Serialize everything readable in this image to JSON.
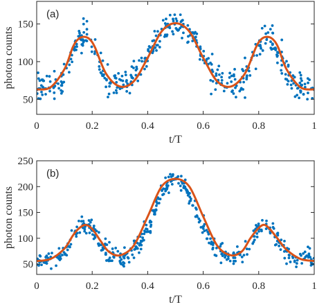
{
  "chart_data": [
    {
      "type": "scatter",
      "panel_label": "(a)",
      "xlabel": "t/T",
      "ylabel": "photon counts",
      "xlim": [
        0,
        1
      ],
      "ylim": [
        30,
        180
      ],
      "xticks": [
        0,
        0.2,
        0.4,
        0.6,
        0.8,
        1
      ],
      "xtick_labels": [
        "0",
        "0.2",
        "0.4",
        "0.6",
        "0.8",
        "1"
      ],
      "yticks": [
        50,
        100,
        150
      ],
      "ytick_labels": [
        "50",
        "100",
        "150"
      ],
      "grid": false,
      "series": [
        {
          "role": "measured",
          "style": "dots",
          "color": "#0072BD",
          "model": {
            "base": 63,
            "peaks": [
              {
                "center": 0.17,
                "height": 70,
                "width": 0.045
              },
              {
                "center": 0.5,
                "height": 88,
                "width": 0.085
              },
              {
                "center": 0.83,
                "height": 70,
                "width": 0.045
              }
            ]
          },
          "noise": 9,
          "count": 450
        },
        {
          "role": "fit",
          "style": "line",
          "color": "#D95319",
          "x": [
            0,
            0.05,
            0.1,
            0.13,
            0.15,
            0.17,
            0.19,
            0.21,
            0.25,
            0.3,
            0.35,
            0.4,
            0.45,
            0.5,
            0.55,
            0.6,
            0.65,
            0.7,
            0.75,
            0.79,
            0.81,
            0.83,
            0.85,
            0.87,
            0.9,
            0.95,
            1
          ],
          "y": [
            63,
            66,
            90,
            119,
            130,
            133,
            130,
            119,
            84,
            67,
            74,
            105,
            140,
            151,
            140,
            105,
            74,
            67,
            84,
            119,
            130,
            133,
            130,
            119,
            90,
            66,
            63
          ]
        }
      ]
    },
    {
      "type": "scatter",
      "panel_label": "(b)",
      "xlabel": "t/T",
      "ylabel": "photon counts",
      "xlim": [
        0,
        1
      ],
      "ylim": [
        30,
        250
      ],
      "xticks": [
        0,
        0.2,
        0.4,
        0.6,
        0.8,
        1
      ],
      "xtick_labels": [
        "0",
        "0.2",
        "0.4",
        "0.6",
        "0.8",
        "1"
      ],
      "yticks": [
        50,
        100,
        150,
        200,
        250
      ],
      "ytick_labels": [
        "50",
        "100",
        "150",
        "200",
        "250"
      ],
      "grid": false,
      "series": [
        {
          "role": "measured",
          "style": "dots",
          "color": "#0072BD",
          "model": {
            "base": 57,
            "peaks": [
              {
                "center": 0.175,
                "height": 70,
                "width": 0.045
              },
              {
                "center": 0.5,
                "height": 158,
                "width": 0.075
              },
              {
                "center": 0.82,
                "height": 70,
                "width": 0.045
              }
            ]
          },
          "noise": 9,
          "count": 450
        },
        {
          "role": "fit",
          "style": "line",
          "color": "#D95319",
          "x": [
            0,
            0.05,
            0.1,
            0.13,
            0.15,
            0.175,
            0.2,
            0.23,
            0.26,
            0.3,
            0.35,
            0.4,
            0.45,
            0.5,
            0.55,
            0.6,
            0.65,
            0.7,
            0.74,
            0.77,
            0.8,
            0.82,
            0.84,
            0.87,
            0.9,
            0.95,
            1
          ],
          "y": [
            56,
            60,
            80,
            105,
            118,
            126,
            118,
            95,
            74,
            67,
            86,
            142,
            200,
            215,
            200,
            142,
            86,
            67,
            75,
            100,
            120,
            126,
            118,
            98,
            78,
            60,
            56
          ]
        }
      ]
    }
  ]
}
